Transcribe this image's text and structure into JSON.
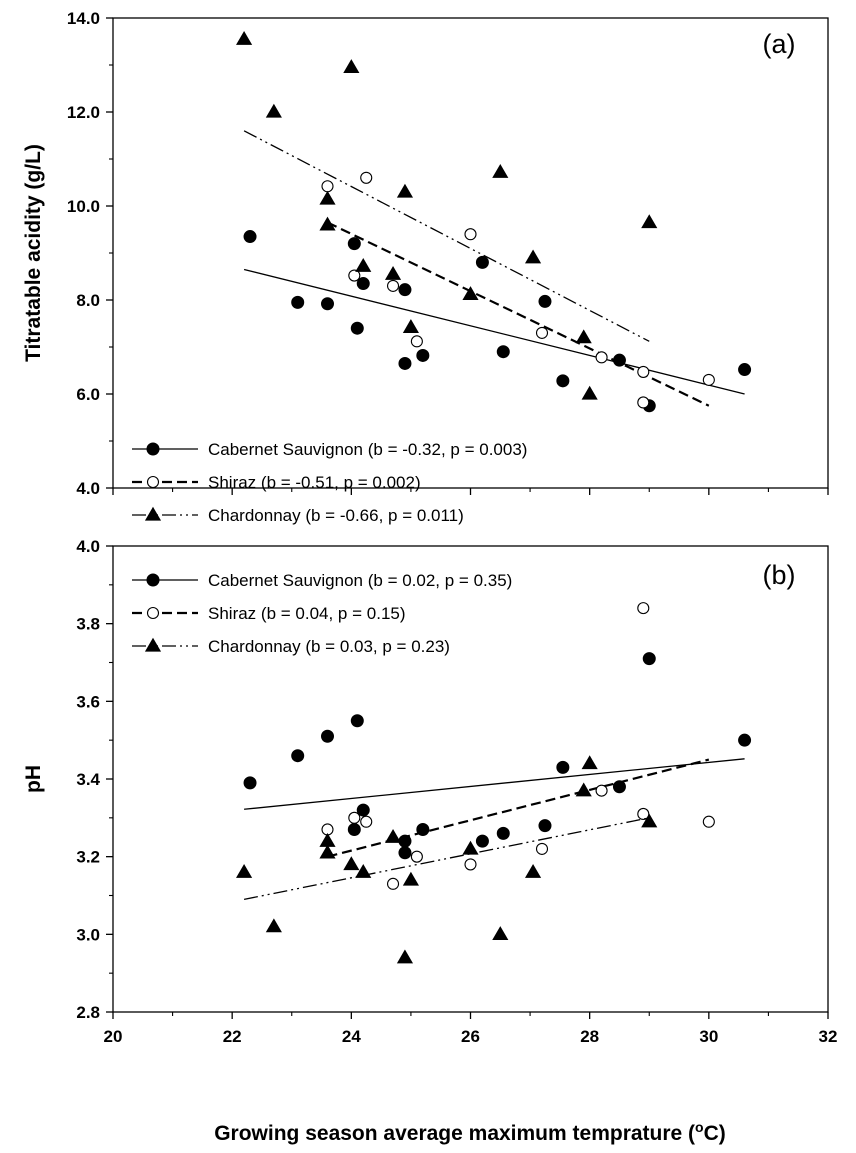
{
  "chart_data": [
    {
      "type": "scatter",
      "panel_label": "(a)",
      "ylabel": "Titratable acidity (g/L)",
      "xlabel": "",
      "xlim": [
        20,
        32
      ],
      "ylim": [
        4.0,
        14.0
      ],
      "yticks": [
        "4.0",
        "6.0",
        "8.0",
        "10.0",
        "12.0",
        "14.0"
      ],
      "legend_position": "bottom-left",
      "series": [
        {
          "name": "Cabernet Sauvignon (b = -0.32, p = 0.003)",
          "marker": "filled-circle",
          "line": "solid",
          "points": [
            [
              22.3,
              9.35
            ],
            [
              23.1,
              7.95
            ],
            [
              23.6,
              7.92
            ],
            [
              24.05,
              9.2
            ],
            [
              24.1,
              7.4
            ],
            [
              24.2,
              8.35
            ],
            [
              24.9,
              8.22
            ],
            [
              24.9,
              6.65
            ],
            [
              25.2,
              6.82
            ],
            [
              26.2,
              8.8
            ],
            [
              26.55,
              6.9
            ],
            [
              27.25,
              7.97
            ],
            [
              27.55,
              6.28
            ],
            [
              28.5,
              6.72
            ],
            [
              29.0,
              5.75
            ],
            [
              30.6,
              6.52
            ]
          ],
          "fit": [
            [
              22.2,
              8.65
            ],
            [
              30.6,
              6.0
            ]
          ]
        },
        {
          "name": "Shiraz (b = -0.51, p = 0.002)",
          "marker": "open-circle",
          "line": "dashed",
          "points": [
            [
              23.6,
              10.42
            ],
            [
              24.05,
              8.52
            ],
            [
              24.25,
              10.6
            ],
            [
              24.7,
              8.3
            ],
            [
              25.1,
              7.12
            ],
            [
              26.0,
              9.4
            ],
            [
              27.2,
              7.3
            ],
            [
              28.2,
              6.78
            ],
            [
              28.9,
              5.82
            ],
            [
              28.9,
              6.47
            ],
            [
              30.0,
              6.3
            ]
          ],
          "fit": [
            [
              23.6,
              9.65
            ],
            [
              30.0,
              5.75
            ]
          ]
        },
        {
          "name": "Chardonnay (b = -0.66, p = 0.011)",
          "marker": "filled-triangle",
          "line": "dash-dot-dot",
          "points": [
            [
              22.2,
              13.55
            ],
            [
              22.7,
              12.0
            ],
            [
              23.6,
              10.15
            ],
            [
              23.6,
              9.6
            ],
            [
              24.0,
              12.95
            ],
            [
              24.2,
              8.72
            ],
            [
              24.7,
              8.55
            ],
            [
              24.9,
              10.3
            ],
            [
              25.0,
              7.42
            ],
            [
              26.0,
              8.12
            ],
            [
              26.5,
              10.72
            ],
            [
              27.05,
              8.9
            ],
            [
              27.9,
              7.2
            ],
            [
              28.0,
              6.0
            ],
            [
              29.0,
              9.65
            ]
          ],
          "fit": [
            [
              22.2,
              11.6
            ],
            [
              29.0,
              7.12
            ]
          ]
        }
      ]
    },
    {
      "type": "scatter",
      "panel_label": "(b)",
      "ylabel": "pH",
      "xlabel": "Growing season average maximum temprature (°C)",
      "xlim": [
        20,
        32
      ],
      "ylim": [
        2.8,
        4.0
      ],
      "xticks": [
        "20",
        "22",
        "24",
        "26",
        "28",
        "30",
        "32"
      ],
      "yticks": [
        "2.8",
        "3.0",
        "3.2",
        "3.4",
        "3.6",
        "3.8",
        "4.0"
      ],
      "legend_position": "top-left",
      "series": [
        {
          "name": "Cabernet Sauvignon (b = 0.02, p = 0.35)",
          "marker": "filled-circle",
          "line": "solid",
          "points": [
            [
              22.3,
              3.39
            ],
            [
              23.1,
              3.46
            ],
            [
              23.6,
              3.51
            ],
            [
              24.1,
              3.55
            ],
            [
              24.05,
              3.27
            ],
            [
              24.2,
              3.32
            ],
            [
              24.9,
              3.24
            ],
            [
              24.9,
              3.21
            ],
            [
              25.2,
              3.27
            ],
            [
              26.2,
              3.24
            ],
            [
              26.55,
              3.26
            ],
            [
              27.25,
              3.28
            ],
            [
              27.55,
              3.43
            ],
            [
              28.5,
              3.38
            ],
            [
              29.0,
              3.71
            ],
            [
              30.6,
              3.5
            ]
          ],
          "fit": [
            [
              22.2,
              3.322
            ],
            [
              30.6,
              3.452
            ]
          ]
        },
        {
          "name": "Shiraz (b = 0.04, p = 0.15)",
          "marker": "open-circle",
          "line": "dashed",
          "points": [
            [
              23.6,
              3.27
            ],
            [
              24.05,
              3.3
            ],
            [
              24.25,
              3.29
            ],
            [
              24.7,
              3.13
            ],
            [
              25.1,
              3.2
            ],
            [
              26.0,
              3.18
            ],
            [
              27.2,
              3.22
            ],
            [
              28.2,
              3.37
            ],
            [
              28.9,
              3.31
            ],
            [
              28.9,
              3.84
            ],
            [
              30.0,
              3.29
            ]
          ],
          "fit": [
            [
              23.6,
              3.2
            ],
            [
              30.0,
              3.45
            ]
          ]
        },
        {
          "name": "Chardonnay (b = 0.03, p = 0.23)",
          "marker": "filled-triangle",
          "line": "dash-dot-dot",
          "points": [
            [
              22.2,
              3.16
            ],
            [
              22.7,
              3.02
            ],
            [
              23.6,
              3.24
            ],
            [
              23.6,
              3.21
            ],
            [
              24.0,
              3.18
            ],
            [
              24.2,
              3.16
            ],
            [
              24.7,
              3.25
            ],
            [
              24.9,
              2.94
            ],
            [
              25.0,
              3.14
            ],
            [
              26.0,
              3.22
            ],
            [
              26.5,
              3.0
            ],
            [
              27.05,
              3.16
            ],
            [
              27.9,
              3.37
            ],
            [
              28.0,
              3.44
            ],
            [
              29.0,
              3.29
            ]
          ],
          "fit": [
            [
              22.2,
              3.09
            ],
            [
              29.0,
              3.3
            ]
          ]
        }
      ]
    }
  ]
}
